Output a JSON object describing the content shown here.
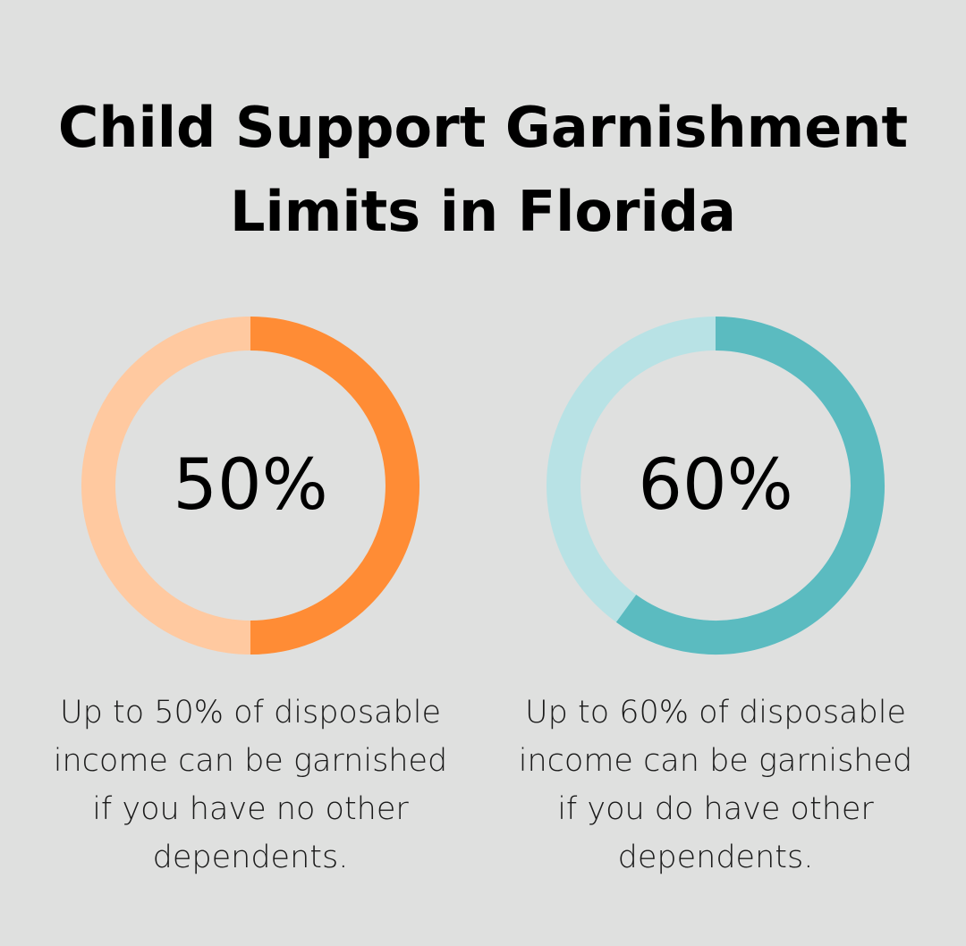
{
  "title": {
    "line1": "Child Support Garnishment",
    "line2": "Limits in Florida"
  },
  "chart_data": [
    {
      "type": "pie",
      "value": 50,
      "label": "50%",
      "max": 100,
      "description_lines": [
        "Up to 50% of disposable",
        "income can be garnished",
        "if you have no other",
        "dependents."
      ],
      "colors": {
        "filled": "#ff8c35",
        "track": "#ffc9a0"
      }
    },
    {
      "type": "pie",
      "value": 60,
      "label": "60%",
      "max": 100,
      "description_lines": [
        "Up to 60% of disposable",
        "income can be garnished",
        "if you do have other",
        "dependents."
      ],
      "colors": {
        "filled": "#5bbbc0",
        "track": "#b8e2e5"
      }
    }
  ],
  "colors": {
    "background": "#dfe0df",
    "text": "#000000"
  }
}
